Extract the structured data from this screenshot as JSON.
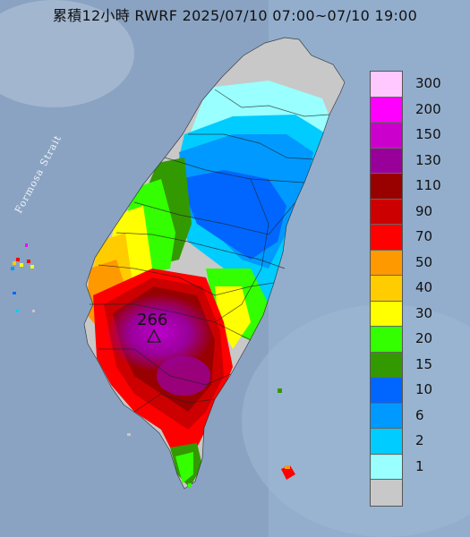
{
  "title": "累積12小時 RWRF 2025/07/10 07:00~07/10 19:00",
  "map_labels": {
    "strait": "Formosa Strait",
    "peak_value": "266"
  },
  "legend": {
    "levels": [
      {
        "label": "300",
        "color": "#ffc8ff"
      },
      {
        "label": "200",
        "color": "#ff00ff"
      },
      {
        "label": "150",
        "color": "#cc00cc"
      },
      {
        "label": "130",
        "color": "#990099"
      },
      {
        "label": "110",
        "color": "#990000"
      },
      {
        "label": "90",
        "color": "#cc0000"
      },
      {
        "label": "70",
        "color": "#ff0000"
      },
      {
        "label": "50",
        "color": "#ff9900"
      },
      {
        "label": "40",
        "color": "#ffcc00"
      },
      {
        "label": "30",
        "color": "#ffff00"
      },
      {
        "label": "20",
        "color": "#33ff00"
      },
      {
        "label": "15",
        "color": "#339900"
      },
      {
        "label": "10",
        "color": "#0066ff"
      },
      {
        "label": "6",
        "color": "#0099ff"
      },
      {
        "label": "2",
        "color": "#00ccff"
      },
      {
        "label": "1",
        "color": "#99ffff"
      },
      {
        "label": "",
        "color": "#c8c8c8"
      }
    ]
  },
  "icons": {
    "peak_marker": "triangle-marker-icon"
  }
}
